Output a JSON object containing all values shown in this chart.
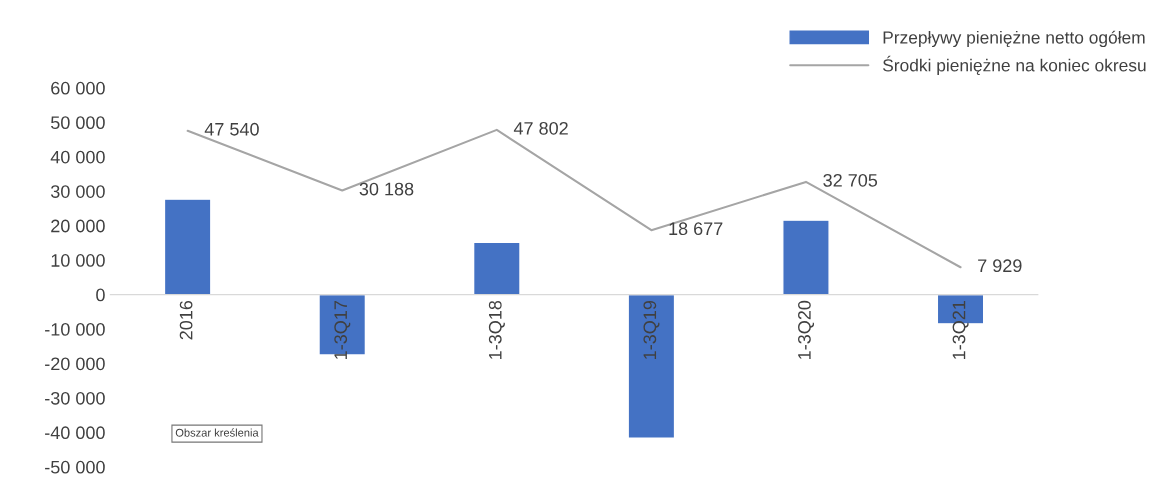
{
  "chart_data": {
    "type": "bar",
    "categories": [
      "2016",
      "1-3Q17",
      "1-3Q18",
      "1-3Q19",
      "1-3Q20",
      "1-3Q21"
    ],
    "series": [
      {
        "name": "Przepływy pieniężne netto ogółem",
        "color": "#4472c4",
        "values": [
          27700,
          -17500,
          15200,
          -41700,
          21600,
          -8500
        ]
      },
      {
        "name": "Środki pieniężne na koniec okresu",
        "type": "line",
        "color": "#a5a5a5",
        "values": [
          47540,
          30188,
          47802,
          18677,
          32705,
          7929
        ],
        "value_labels": [
          "47 540",
          "30 188",
          "47 802",
          "18 677",
          "32 705",
          "7 929"
        ]
      }
    ],
    "ylim": [
      -50000,
      60000
    ],
    "yticks": [
      {
        "value": -50000,
        "label": "-50 000"
      },
      {
        "value": -40000,
        "label": "-40 000"
      },
      {
        "value": -30000,
        "label": "-30 000"
      },
      {
        "value": -20000,
        "label": "-20 000"
      },
      {
        "value": -10000,
        "label": "-10 000"
      },
      0,
      {
        "value": 10000,
        "label": "10 000"
      },
      {
        "value": 20000,
        "label": "20 000"
      },
      {
        "value": 30000,
        "label": "30 000"
      },
      {
        "value": 40000,
        "label": "40 000"
      },
      {
        "value": 50000,
        "label": "50 000"
      },
      {
        "value": 60000,
        "label": "60 000"
      }
    ],
    "annotations": [
      "Obszar kreślenia"
    ],
    "legend": "top right",
    "grid": false,
    "marker": "none"
  }
}
